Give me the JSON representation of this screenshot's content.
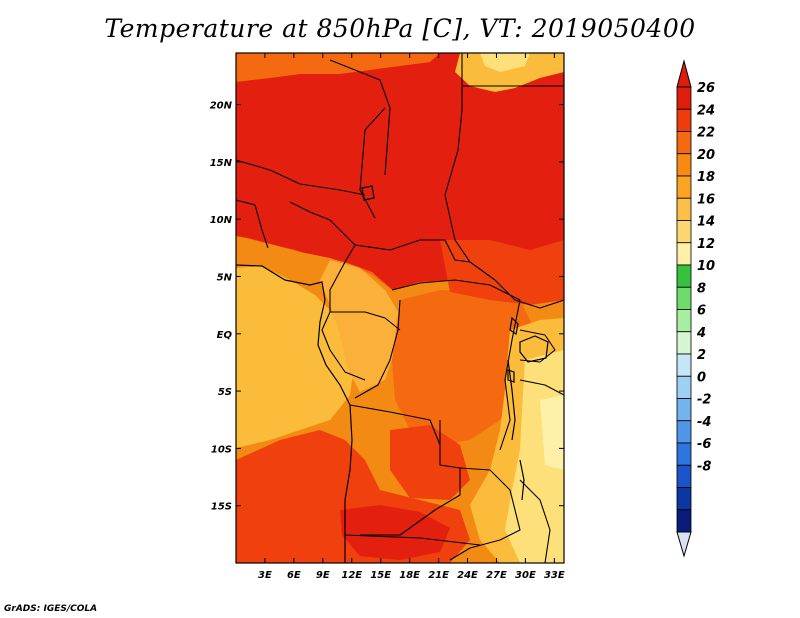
{
  "title": "Temperature at 850hPa [C], VT: 2019050400",
  "credit": "GrADS: IGES/COLA",
  "map": {
    "lon_range": [
      0,
      34
    ],
    "lat_range": [
      -20,
      24.5
    ],
    "x_ticks": [
      "3E",
      "6E",
      "9E",
      "12E",
      "15E",
      "18E",
      "21E",
      "24E",
      "27E",
      "30E",
      "33E"
    ],
    "x_tick_values": [
      3,
      6,
      9,
      12,
      15,
      18,
      21,
      24,
      27,
      30,
      33
    ],
    "y_ticks": [
      "20N",
      "15N",
      "10N",
      "5N",
      "EQ",
      "5S",
      "10S",
      "15S"
    ],
    "y_tick_values": [
      20,
      15,
      10,
      5,
      0,
      -5,
      -10,
      -15
    ],
    "dominant_colors": {
      "north_sahel": "#e3200f",
      "central_basin": "#f3630a",
      "gulf_of_guinea": "#fbbc3c",
      "east_highlands": "#fde07a"
    }
  },
  "colorbar": {
    "labels": [
      "26",
      "24",
      "22",
      "20",
      "18",
      "16",
      "14",
      "12",
      "10",
      "8",
      "6",
      "4",
      "2",
      "0",
      "-2",
      "-4",
      "-6",
      "-8"
    ],
    "colors": [
      "#dc1e0a",
      "#f03c0c",
      "#f56a10",
      "#f88a14",
      "#fba424",
      "#fcc04a",
      "#fdd872",
      "#fef0a6",
      "#36c23c",
      "#6edc6a",
      "#a6eea0",
      "#d6f6d2",
      "#c6e6f8",
      "#9ed0f4",
      "#74b4ee",
      "#4e96e8",
      "#2c76de",
      "#1a54c8",
      "#0c36a2",
      "#0a1c78"
    ],
    "top_arrow_color": "#dc1e0a",
    "bottom_arrow_color": "#dce0f4"
  }
}
